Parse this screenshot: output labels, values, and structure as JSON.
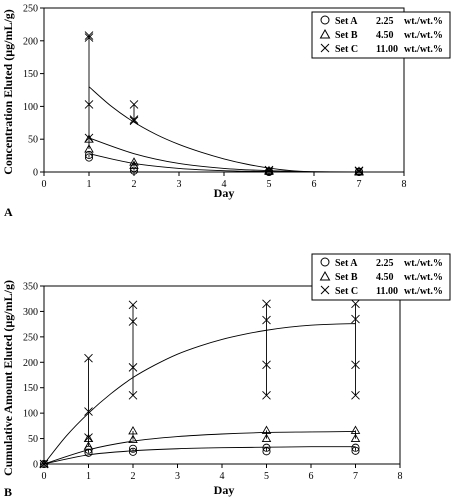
{
  "chart_data": [
    {
      "panel": "A",
      "type": "scatter",
      "xlabel": "Day",
      "ylabel": "Concentration Eluted (µg/mL/g)",
      "xlim": [
        0,
        8
      ],
      "ylim": [
        0,
        250
      ],
      "xticks": [
        "0",
        "1",
        "2",
        "3",
        "4",
        "5",
        "6",
        "7",
        "8"
      ],
      "yticks": [
        "0",
        "50",
        "100",
        "150",
        "200",
        "250"
      ],
      "legend_position": "top-right",
      "series": [
        {
          "name": "Set A",
          "conc": "2.25",
          "unit": "wt./wt.%",
          "marker": "circle",
          "points": [
            [
              1,
              22
            ],
            [
              1,
              26
            ],
            [
              2,
              2
            ],
            [
              2,
              6
            ],
            [
              5,
              0
            ],
            [
              5,
              1
            ],
            [
              7,
              0
            ],
            [
              7,
              0.5
            ]
          ],
          "range_bars": [
            [
              1,
              22,
              26
            ],
            [
              2,
              2,
              6
            ]
          ],
          "fit": [
            [
              1,
              28
            ],
            [
              2,
              13
            ],
            [
              3,
              5.5
            ],
            [
              4,
              2
            ],
            [
              5,
              0.7
            ],
            [
              6,
              0.2
            ],
            [
              7,
              0
            ]
          ]
        },
        {
          "name": "Set B",
          "conc": "4.50",
          "unit": "wt./wt.%",
          "marker": "triangle",
          "points": [
            [
              1,
              35
            ],
            [
              1,
              50
            ],
            [
              2,
              15
            ],
            [
              2,
              10
            ],
            [
              5,
              1
            ],
            [
              5,
              2
            ],
            [
              7,
              0
            ],
            [
              7,
              1
            ]
          ],
          "range_bars": [
            [
              1,
              35,
              50
            ],
            [
              2,
              10,
              15
            ]
          ],
          "fit": [
            [
              1,
              52
            ],
            [
              2,
              28
            ],
            [
              3,
              13
            ],
            [
              4,
              5.5
            ],
            [
              5,
              2
            ],
            [
              6,
              0.5
            ],
            [
              7,
              0
            ]
          ]
        },
        {
          "name": "Set C",
          "conc": "11.00",
          "unit": "wt./wt.%",
          "marker": "x",
          "points": [
            [
              1,
              52
            ],
            [
              1,
              103
            ],
            [
              1,
              205
            ],
            [
              1,
              208
            ],
            [
              2,
              78
            ],
            [
              2,
              80
            ],
            [
              2,
              103
            ],
            [
              5,
              2
            ],
            [
              5,
              3
            ],
            [
              7,
              1
            ],
            [
              7,
              2
            ]
          ],
          "range_bars": [
            [
              1,
              52,
              208
            ],
            [
              2,
              78,
              103
            ]
          ],
          "fit": [
            [
              1,
              130
            ],
            [
              1.5,
              100
            ],
            [
              2,
              76
            ],
            [
              2.5,
              57
            ],
            [
              3,
              42
            ],
            [
              3.5,
              30
            ],
            [
              4,
              20
            ],
            [
              4.5,
              12
            ],
            [
              5,
              6
            ],
            [
              5.5,
              2
            ],
            [
              6,
              0
            ]
          ]
        }
      ]
    },
    {
      "panel": "B",
      "type": "scatter",
      "xlabel": "Day",
      "ylabel": "Cumulative Amount Eluted (µg/mL/g)",
      "xlim": [
        0,
        8
      ],
      "ylim": [
        0,
        350
      ],
      "xticks": [
        "0",
        "1",
        "2",
        "3",
        "4",
        "5",
        "6",
        "7",
        "8"
      ],
      "yticks": [
        "0",
        "50",
        "100",
        "150",
        "200",
        "250",
        "300",
        "350"
      ],
      "legend_position": "top-right",
      "series": [
        {
          "name": "Set A",
          "conc": "2.25",
          "unit": "wt./wt.%",
          "marker": "circle",
          "points": [
            [
              0,
              0
            ],
            [
              1,
              22
            ],
            [
              1,
              28
            ],
            [
              2,
              24
            ],
            [
              2,
              30
            ],
            [
              5,
              25
            ],
            [
              5,
              32
            ],
            [
              7,
              26
            ],
            [
              7,
              32
            ]
          ],
          "range_bars": [
            [
              1,
              22,
              28
            ],
            [
              2,
              24,
              30
            ],
            [
              5,
              25,
              32
            ],
            [
              7,
              26,
              32
            ]
          ],
          "fit": [
            [
              0,
              0
            ],
            [
              1,
              18
            ],
            [
              2,
              26
            ],
            [
              3,
              30
            ],
            [
              4,
              32
            ],
            [
              5,
              33
            ],
            [
              6,
              34
            ],
            [
              7,
              34
            ]
          ]
        },
        {
          "name": "Set B",
          "conc": "4.50",
          "unit": "wt./wt.%",
          "marker": "triangle",
          "points": [
            [
              0,
              0
            ],
            [
              1,
              35
            ],
            [
              1,
              50
            ],
            [
              2,
              48
            ],
            [
              2,
              65
            ],
            [
              5,
              50
            ],
            [
              5,
              66
            ],
            [
              7,
              50
            ],
            [
              7,
              66
            ]
          ],
          "range_bars": [
            [
              1,
              35,
              50
            ],
            [
              2,
              48,
              65
            ],
            [
              5,
              50,
              66
            ],
            [
              7,
              50,
              66
            ]
          ],
          "fit": [
            [
              0,
              0
            ],
            [
              1,
              28
            ],
            [
              2,
              45
            ],
            [
              3,
              54
            ],
            [
              4,
              59
            ],
            [
              5,
              62
            ],
            [
              6,
              63
            ],
            [
              7,
              64
            ]
          ]
        },
        {
          "name": "Set C",
          "conc": "11.00",
          "unit": "wt./wt.%",
          "marker": "x",
          "points": [
            [
              0,
              0
            ],
            [
              1,
              52
            ],
            [
              1,
              103
            ],
            [
              1,
              208
            ],
            [
              2,
              135
            ],
            [
              2,
              190
            ],
            [
              2,
              280
            ],
            [
              2,
              313
            ],
            [
              5,
              135
            ],
            [
              5,
              195
            ],
            [
              5,
              283
            ],
            [
              5,
              315
            ],
            [
              7,
              135
            ],
            [
              7,
              195
            ],
            [
              7,
              285
            ],
            [
              7,
              315
            ]
          ],
          "range_bars": [
            [
              1,
              52,
              208
            ],
            [
              2,
              135,
              313
            ],
            [
              5,
              135,
              315
            ],
            [
              7,
              135,
              315
            ]
          ],
          "fit": [
            [
              0,
              0
            ],
            [
              0.5,
              55
            ],
            [
              1,
              100
            ],
            [
              1.5,
              138
            ],
            [
              2,
              170
            ],
            [
              2.5,
              195
            ],
            [
              3,
              216
            ],
            [
              3.5,
              232
            ],
            [
              4,
              245
            ],
            [
              4.5,
              255
            ],
            [
              5,
              263
            ],
            [
              5.5,
              269
            ],
            [
              6,
              273
            ],
            [
              6.5,
              275
            ],
            [
              7,
              276
            ]
          ]
        }
      ]
    }
  ]
}
